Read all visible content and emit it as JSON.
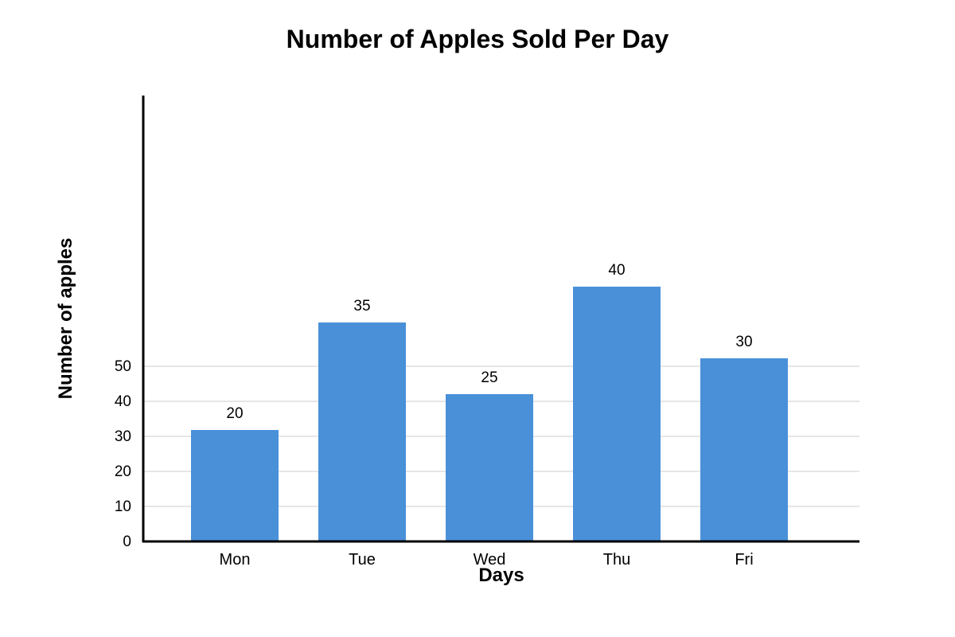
{
  "chart_data": {
    "type": "bar",
    "title": "Number of Apples Sold Per Day",
    "xlabel": "Days",
    "ylabel": "Number of apples",
    "categories": [
      "Mon",
      "Tue",
      "Wed",
      "Thu",
      "Fri"
    ],
    "values": [
      20,
      35,
      25,
      40,
      30
    ],
    "y_ticks": [
      0,
      10,
      20,
      30,
      40,
      50
    ],
    "grid": true,
    "legend": "none",
    "bar_color": "#4a90d9",
    "grid_color": "#dddddd",
    "axis_color": "#000000"
  }
}
